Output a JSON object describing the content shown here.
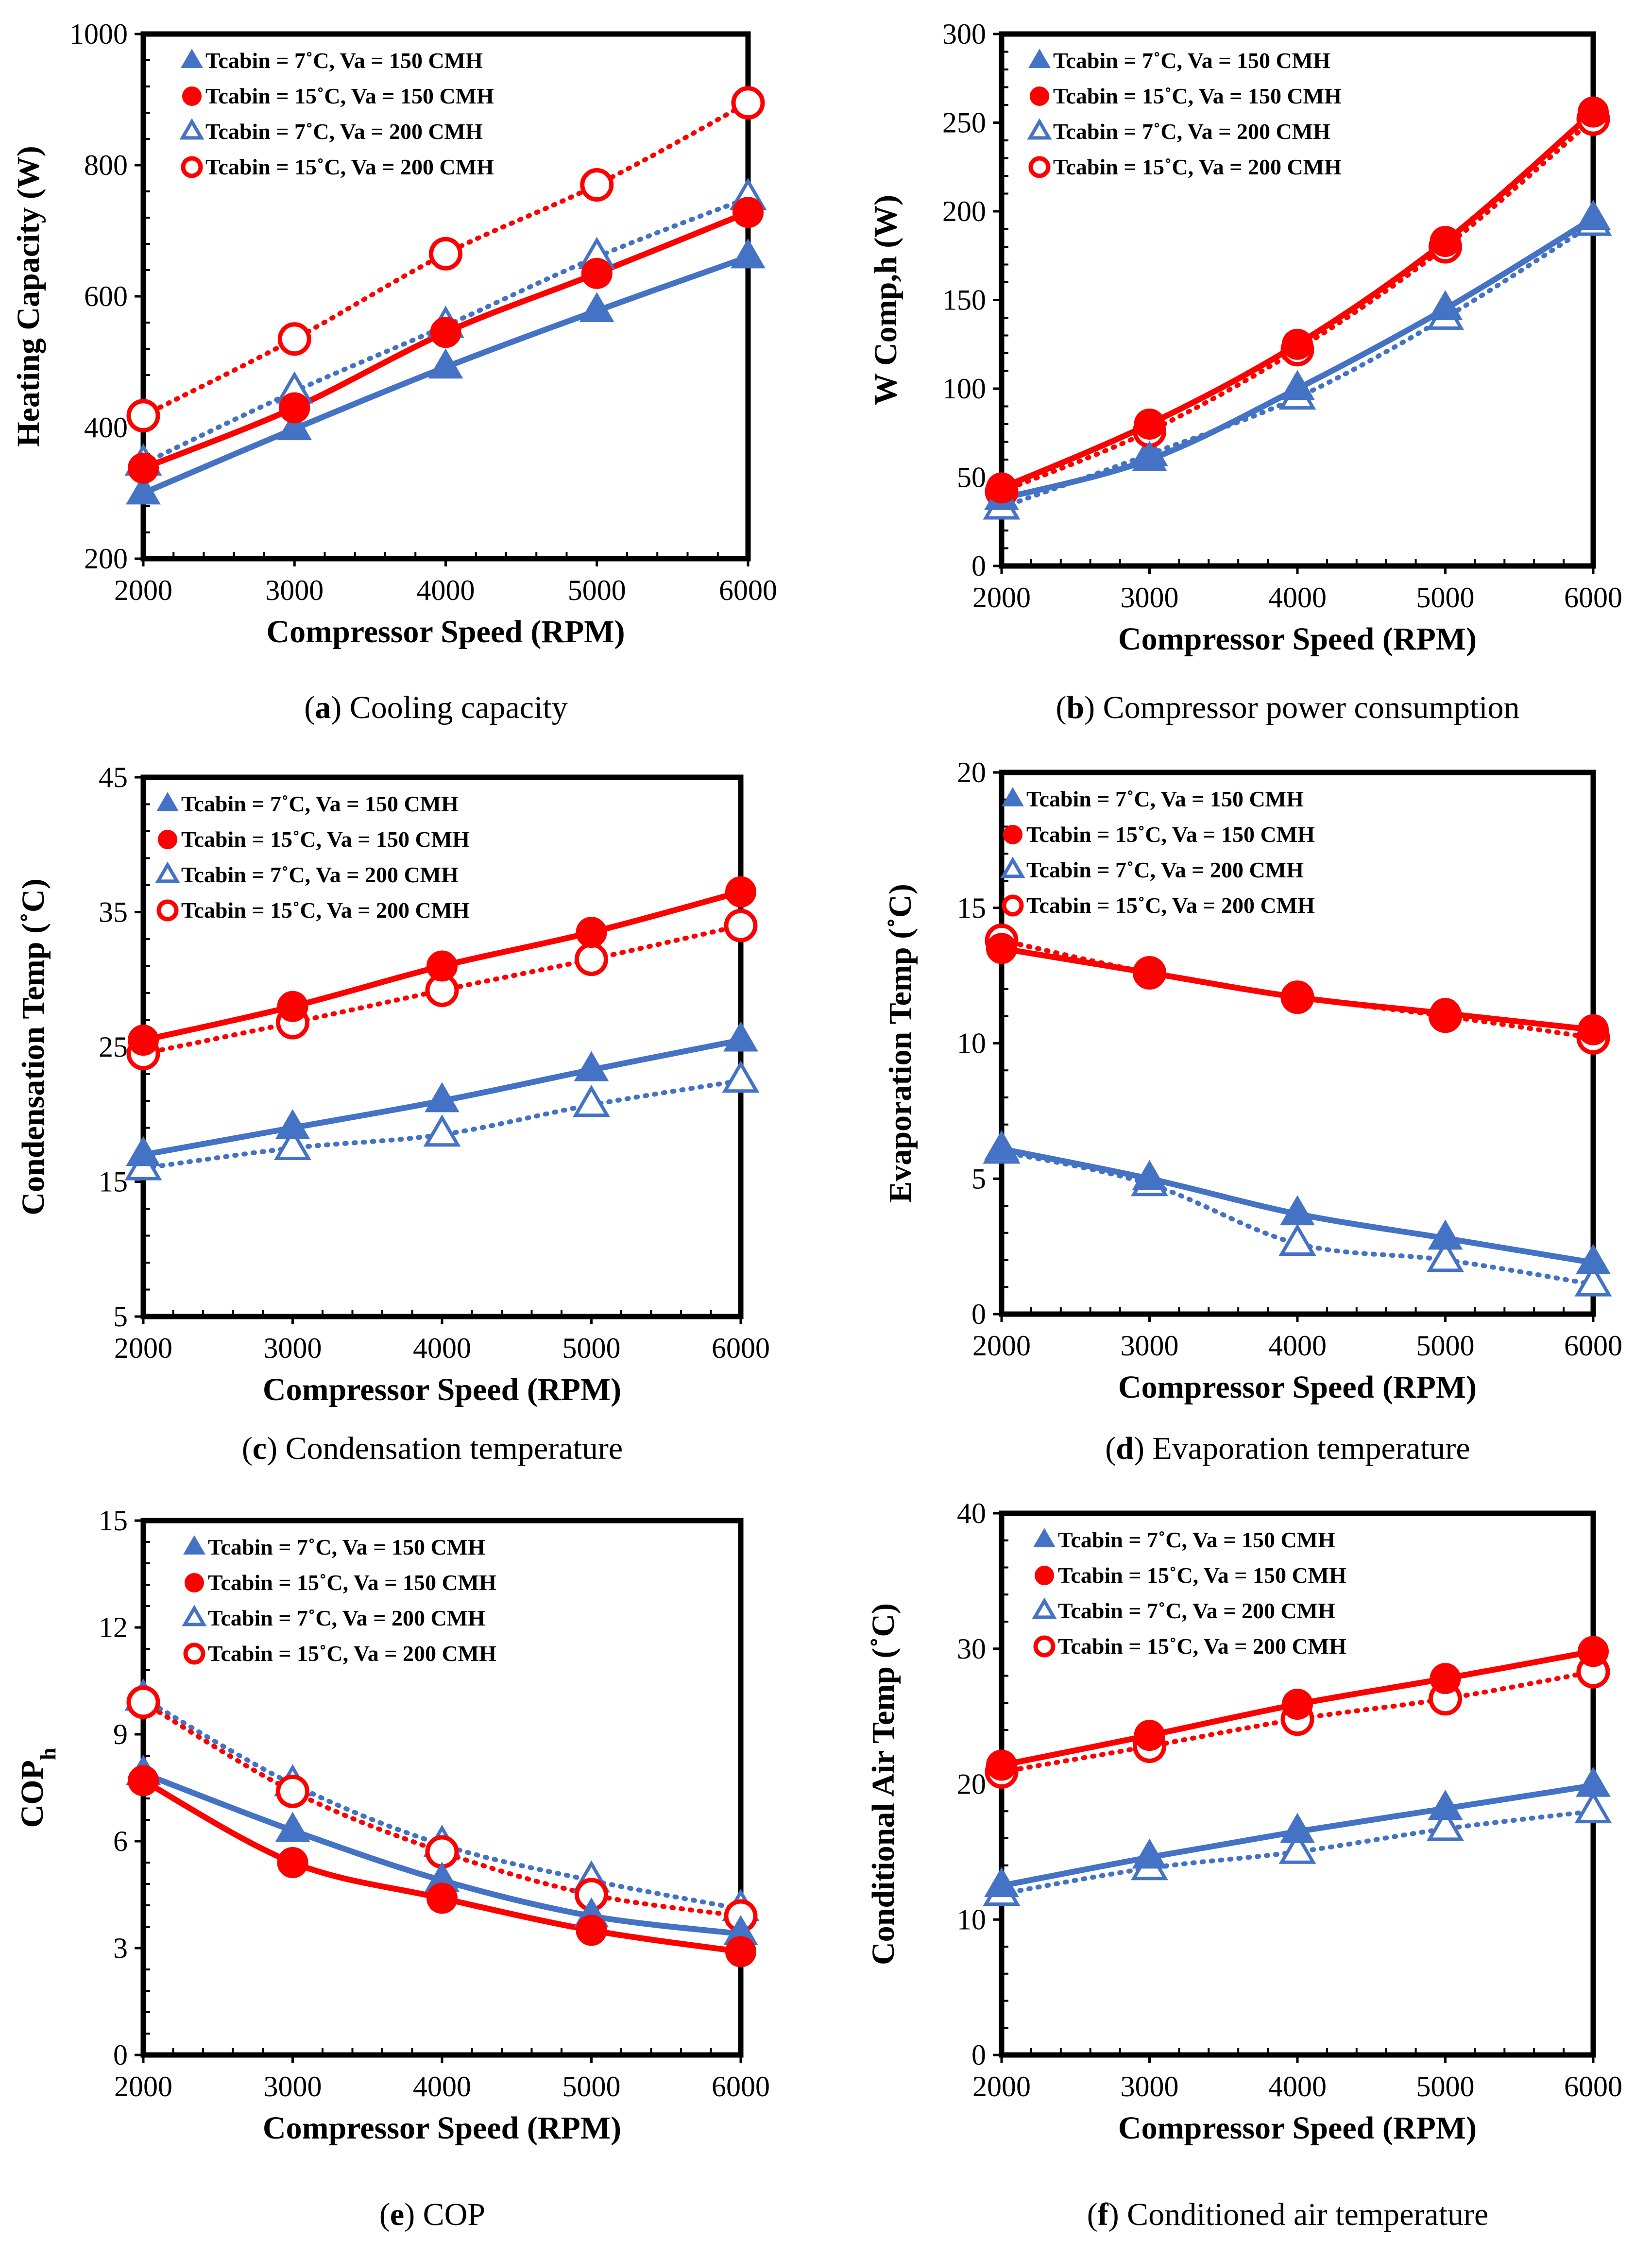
{
  "figure": {
    "legend": [
      {
        "label": "Tcabin = 7˚C,   Va = 150 CMH",
        "color": "#4472C4",
        "marker": "triangle-filled",
        "line": "solid"
      },
      {
        "label": "Tcabin = 15˚C, Va = 150 CMH",
        "color": "#FF0000",
        "marker": "circle-filled",
        "line": "solid"
      },
      {
        "label": "Tcabin = 7˚C,   Va = 200 CMH",
        "color": "#4472C4",
        "marker": "triangle-open",
        "line": "dotted"
      },
      {
        "label": "Tcabin = 15˚C, Va = 200 CMH",
        "color": "#FF0000",
        "marker": "circle-open",
        "line": "dotted"
      }
    ]
  },
  "chart_data": [
    {
      "id": "a",
      "type": "line",
      "caption_letter": "(a)",
      "caption_text": " Cooling capacity",
      "ylabel": "Heating Capacity (W)",
      "xlabel": "Compressor Speed (RPM)",
      "ylim": [
        200,
        1000
      ],
      "yticks": [
        "200",
        "400",
        "600",
        "800",
        "1000"
      ],
      "x": [
        2000,
        3000,
        4000,
        5000,
        6000
      ],
      "xticks": [
        "2000",
        "3000",
        "4000",
        "5000",
        "6000"
      ],
      "series": [
        {
          "name": "Tcabin = 7˚C,   Va = 150 CMH",
          "values": [
            300,
            398,
            492,
            578,
            660
          ]
        },
        {
          "name": "Tcabin = 15˚C, Va = 150 CMH",
          "values": [
            338,
            430,
            545,
            635,
            728
          ]
        },
        {
          "name": "Tcabin = 7˚C,   Va = 200 CMH",
          "values": [
            345,
            455,
            555,
            660,
            750
          ]
        },
        {
          "name": "Tcabin = 15˚C, Va = 200 CMH",
          "values": [
            418,
            535,
            665,
            770,
            895
          ]
        }
      ]
    },
    {
      "id": "b",
      "type": "line",
      "caption_letter": "(b)",
      "caption_text": " Compressor power consumption",
      "ylabel": "W Comp,h  (W)",
      "xlabel": "Compressor Speed (RPM)",
      "ylim": [
        0,
        300
      ],
      "yticks": [
        "0",
        "50",
        "100",
        "150",
        "200",
        "250",
        "300"
      ],
      "x": [
        2000,
        3000,
        4000,
        5000,
        6000
      ],
      "xticks": [
        "2000",
        "3000",
        "4000",
        "5000",
        "6000"
      ],
      "series": [
        {
          "name": "Tcabin = 7˚C,   Va = 150 CMH",
          "values": [
            38,
            60,
            100,
            145,
            196
          ]
        },
        {
          "name": "Tcabin = 15˚C, Va = 150 CMH",
          "values": [
            44,
            80,
            125,
            183,
            256
          ]
        },
        {
          "name": "Tcabin = 7˚C,   Va = 200 CMH",
          "values": [
            33,
            63,
            95,
            140,
            193
          ]
        },
        {
          "name": "Tcabin = 15˚C, Va = 200 CMH",
          "values": [
            42,
            76,
            122,
            180,
            252
          ]
        }
      ]
    },
    {
      "id": "c",
      "type": "line",
      "caption_letter": "(c)",
      "caption_text": " Condensation temperature",
      "ylabel": "Condensation Temp (˚C)",
      "xlabel": "Compressor Speed (RPM)",
      "ylim": [
        5,
        45
      ],
      "yticks": [
        "5",
        "15",
        "25",
        "35",
        "45"
      ],
      "x": [
        2000,
        3000,
        4000,
        5000,
        6000
      ],
      "xticks": [
        "2000",
        "3000",
        "4000",
        "5000",
        "6000"
      ],
      "series": [
        {
          "name": "Tcabin = 7˚C,   Va = 150 CMH",
          "values": [
            17.0,
            19.0,
            21.0,
            23.3,
            25.5
          ]
        },
        {
          "name": "Tcabin = 15˚C, Va = 150 CMH",
          "values": [
            25.5,
            28.0,
            31.0,
            33.5,
            36.5
          ]
        },
        {
          "name": "Tcabin = 7˚C,   Va = 200 CMH",
          "values": [
            16.0,
            17.5,
            18.5,
            20.7,
            22.5
          ]
        },
        {
          "name": "Tcabin = 15˚C, Va = 200 CMH",
          "values": [
            24.5,
            26.8,
            29.2,
            31.5,
            34.0
          ]
        }
      ]
    },
    {
      "id": "d",
      "type": "line",
      "caption_letter": "(d)",
      "caption_text": " Evaporation temperature",
      "ylabel": "Evaporation Temp (˚C)",
      "xlabel": "Compressor Speed (RPM)",
      "ylim": [
        0,
        20
      ],
      "yticks": [
        "0",
        "5",
        "10",
        "15",
        "20"
      ],
      "x": [
        2000,
        3000,
        4000,
        5000,
        6000
      ],
      "xticks": [
        "2000",
        "3000",
        "4000",
        "5000",
        "6000"
      ],
      "series": [
        {
          "name": "Tcabin = 7˚C,   Va = 150 CMH",
          "values": [
            6.1,
            5.0,
            3.7,
            2.8,
            1.9
          ]
        },
        {
          "name": "Tcabin = 15˚C, Va = 150 CMH",
          "values": [
            13.5,
            12.6,
            11.7,
            11.1,
            10.5
          ]
        },
        {
          "name": "Tcabin = 7˚C,   Va = 200 CMH",
          "values": [
            6.0,
            4.8,
            2.6,
            2.0,
            1.1
          ]
        },
        {
          "name": "Tcabin = 15˚C, Va = 200 CMH",
          "values": [
            13.8,
            12.6,
            11.7,
            11.0,
            10.2
          ]
        }
      ]
    },
    {
      "id": "e",
      "type": "line",
      "caption_letter": "(e)",
      "caption_text": " COP",
      "ylabel": "COP",
      "ylabel_sub": "h",
      "xlabel": "Compressor Speed (RPM)",
      "ylim": [
        0,
        15
      ],
      "yticks": [
        "0",
        "3",
        "6",
        "9",
        "12",
        "15"
      ],
      "x": [
        2000,
        3000,
        4000,
        5000,
        6000
      ],
      "xticks": [
        "2000",
        "3000",
        "4000",
        "5000",
        "6000"
      ],
      "series": [
        {
          "name": "Tcabin = 7˚C,   Va = 150 CMH",
          "values": [
            7.9,
            6.3,
            4.9,
            3.9,
            3.4
          ]
        },
        {
          "name": "Tcabin = 15˚C, Va = 150 CMH",
          "values": [
            7.7,
            5.4,
            4.4,
            3.5,
            2.9
          ]
        },
        {
          "name": "Tcabin = 7˚C,   Va = 200 CMH",
          "values": [
            10.0,
            7.6,
            5.9,
            4.9,
            4.1
          ]
        },
        {
          "name": "Tcabin = 15˚C, Va = 200 CMH",
          "values": [
            9.9,
            7.4,
            5.7,
            4.5,
            3.9
          ]
        }
      ]
    },
    {
      "id": "f",
      "type": "line",
      "caption_letter": "(f)",
      "caption_text": " Conditioned air temperature",
      "ylabel": "Conditional Air Temp (˚C)",
      "xlabel": "Compressor Speed (RPM)",
      "ylim": [
        0,
        40
      ],
      "yticks": [
        "0",
        "10",
        "20",
        "30",
        "40"
      ],
      "x": [
        2000,
        3000,
        4000,
        5000,
        6000
      ],
      "xticks": [
        "2000",
        "3000",
        "4000",
        "5000",
        "6000"
      ],
      "series": [
        {
          "name": "Tcabin = 7˚C,   Va = 150 CMH",
          "values": [
            12.5,
            14.6,
            16.5,
            18.2,
            19.9
          ]
        },
        {
          "name": "Tcabin = 15˚C, Va = 150 CMH",
          "values": [
            21.4,
            23.6,
            25.9,
            27.8,
            29.8
          ]
        },
        {
          "name": "Tcabin = 7˚C,   Va = 200 CMH",
          "values": [
            11.9,
            13.8,
            15.0,
            16.7,
            18.0
          ]
        },
        {
          "name": "Tcabin = 15˚C, Va = 200 CMH",
          "values": [
            20.9,
            22.8,
            24.8,
            26.3,
            28.3
          ]
        }
      ]
    }
  ]
}
